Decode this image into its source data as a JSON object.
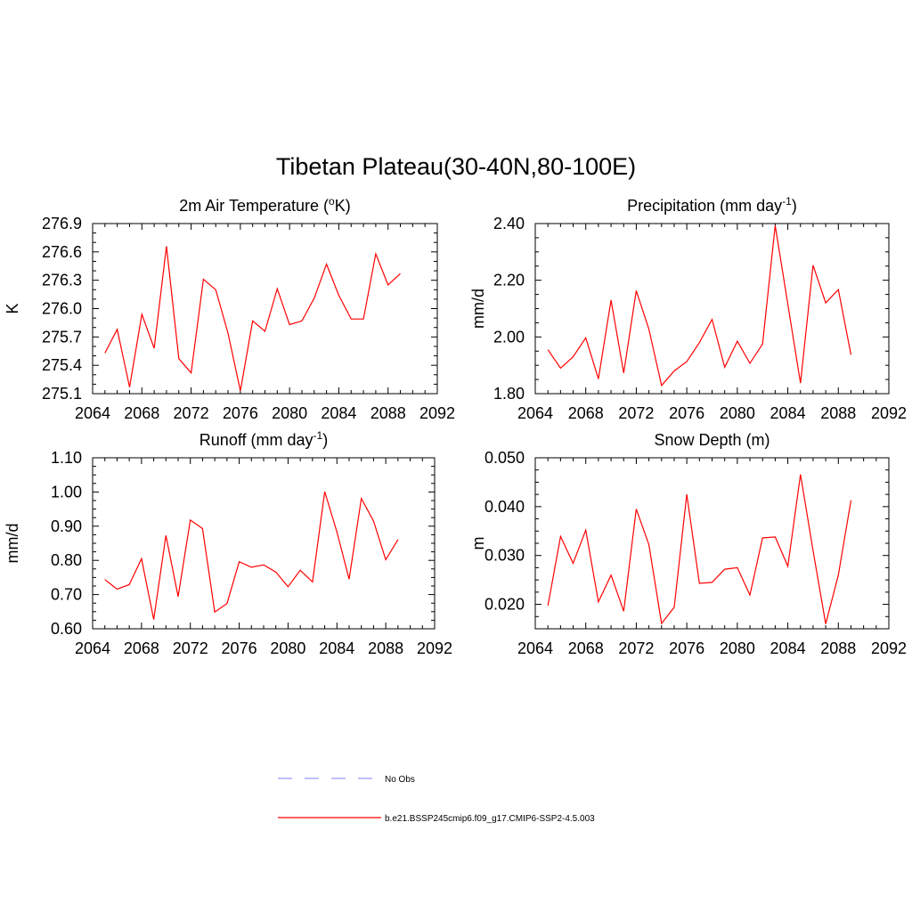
{
  "title": "Tibetan Plateau(30-40N,80-100E)",
  "panels": [
    {
      "title_main": "2m Air Temperature (",
      "title_sup": "o",
      "title_end": "K)",
      "ylabel": "K",
      "xticks": [
        "2064",
        "2068",
        "2072",
        "2076",
        "2080",
        "2084",
        "2088",
        "2092"
      ],
      "yticks": [
        "275.1",
        "275.4",
        "275.7",
        "276.0",
        "276.3",
        "276.6",
        "276.9"
      ]
    },
    {
      "title_main": "Precipitation (mm day",
      "title_sup": "-1",
      "title_end": ")",
      "ylabel": "mm/d",
      "xticks": [
        "2064",
        "2068",
        "2072",
        "2076",
        "2080",
        "2084",
        "2088",
        "2092"
      ],
      "yticks": [
        "1.80",
        "2.00",
        "2.20",
        "2.40"
      ]
    },
    {
      "title_main": "Runoff (mm day",
      "title_sup": "-1",
      "title_end": ")",
      "ylabel": "mm/d",
      "xticks": [
        "2064",
        "2068",
        "2072",
        "2076",
        "2080",
        "2084",
        "2088",
        "2092"
      ],
      "yticks": [
        "0.60",
        "0.70",
        "0.80",
        "0.90",
        "1.00",
        "1.10"
      ]
    },
    {
      "title_main": "Snow Depth (m)",
      "title_sup": "",
      "title_end": "",
      "ylabel": "m",
      "xticks": [
        "2064",
        "2068",
        "2072",
        "2076",
        "2080",
        "2084",
        "2088",
        "2092"
      ],
      "yticks": [
        "0.020",
        "0.030",
        "0.040",
        "0.050"
      ]
    }
  ],
  "legend": [
    {
      "label": "No Obs",
      "color": "#9999ff",
      "style": "dashed"
    },
    {
      "label": "b.e21.BSSP245cmip6.f09_g17.CMIP6-SSP2-4.5.003",
      "color": "#ff0000",
      "style": "solid"
    }
  ],
  "chart_data": [
    {
      "type": "line",
      "title": "2m Air Temperature (oK)",
      "ylabel": "K",
      "xlim": [
        2064,
        2092
      ],
      "ylim": [
        275.1,
        276.9
      ],
      "x": [
        2065,
        2066,
        2067,
        2068,
        2069,
        2070,
        2071,
        2072,
        2073,
        2074,
        2075,
        2076,
        2077,
        2078,
        2079,
        2080,
        2081,
        2082,
        2083,
        2084,
        2085,
        2086,
        2087,
        2088,
        2089
      ],
      "series": [
        {
          "name": "b.e21.BSSP245cmip6.f09_g17.CMIP6-SSP2-4.5.003",
          "color": "#ff0000",
          "values": [
            275.53,
            275.78,
            275.17,
            275.94,
            275.58,
            276.66,
            275.47,
            275.32,
            276.31,
            276.2,
            275.74,
            275.13,
            275.87,
            275.76,
            276.21,
            275.83,
            275.87,
            276.11,
            276.47,
            276.14,
            275.89,
            275.89,
            276.58,
            276.25,
            276.37
          ]
        }
      ]
    },
    {
      "type": "line",
      "title": "Precipitation (mm day-1)",
      "ylabel": "mm/d",
      "xlim": [
        2064,
        2092
      ],
      "ylim": [
        1.8,
        2.4
      ],
      "x": [
        2065,
        2066,
        2067,
        2068,
        2069,
        2070,
        2071,
        2072,
        2073,
        2074,
        2075,
        2076,
        2077,
        2078,
        2079,
        2080,
        2081,
        2082,
        2083,
        2084,
        2085,
        2086,
        2087,
        2088,
        2089
      ],
      "series": [
        {
          "name": "b.e21.BSSP245cmip6.f09_g17.CMIP6-SSP2-4.5.003",
          "color": "#ff0000",
          "values": [
            1.955,
            1.89,
            1.93,
            1.997,
            1.852,
            2.13,
            1.873,
            2.163,
            2.027,
            1.829,
            1.88,
            1.913,
            1.98,
            2.062,
            1.893,
            1.985,
            1.907,
            1.975,
            2.393,
            2.115,
            1.837,
            2.253,
            2.12,
            2.167,
            1.937
          ]
        }
      ]
    },
    {
      "type": "line",
      "title": "Runoff (mm day-1)",
      "ylabel": "mm/d",
      "xlim": [
        2064,
        2092
      ],
      "ylim": [
        0.6,
        1.1
      ],
      "x": [
        2065,
        2066,
        2067,
        2068,
        2069,
        2070,
        2071,
        2072,
        2073,
        2074,
        2075,
        2076,
        2077,
        2078,
        2079,
        2080,
        2081,
        2082,
        2083,
        2084,
        2085,
        2086,
        2087,
        2088,
        2089
      ],
      "series": [
        {
          "name": "b.e21.BSSP245cmip6.f09_g17.CMIP6-SSP2-4.5.003",
          "color": "#ff0000",
          "values": [
            0.744,
            0.716,
            0.729,
            0.805,
            0.627,
            0.873,
            0.694,
            0.918,
            0.893,
            0.649,
            0.674,
            0.796,
            0.78,
            0.787,
            0.766,
            0.723,
            0.771,
            0.737,
            1.001,
            0.883,
            0.745,
            0.981,
            0.915,
            0.802,
            0.861
          ]
        }
      ]
    },
    {
      "type": "line",
      "title": "Snow Depth (m)",
      "ylabel": "m",
      "xlim": [
        2064,
        2092
      ],
      "ylim": [
        0.015,
        0.05
      ],
      "x": [
        2065,
        2066,
        2067,
        2068,
        2069,
        2070,
        2071,
        2072,
        2073,
        2074,
        2075,
        2076,
        2077,
        2078,
        2079,
        2080,
        2081,
        2082,
        2083,
        2084,
        2085,
        2086,
        2087,
        2088,
        2089
      ],
      "series": [
        {
          "name": "b.e21.BSSP245cmip6.f09_g17.CMIP6-SSP2-4.5.003",
          "color": "#ff0000",
          "values": [
            0.0197,
            0.0339,
            0.0284,
            0.0352,
            0.0205,
            0.026,
            0.0186,
            0.0395,
            0.0322,
            0.0161,
            0.0194,
            0.0425,
            0.0243,
            0.0245,
            0.0272,
            0.0275,
            0.0219,
            0.0336,
            0.0338,
            0.0278,
            0.0466,
            0.031,
            0.016,
            0.026,
            0.0413
          ]
        }
      ]
    }
  ]
}
